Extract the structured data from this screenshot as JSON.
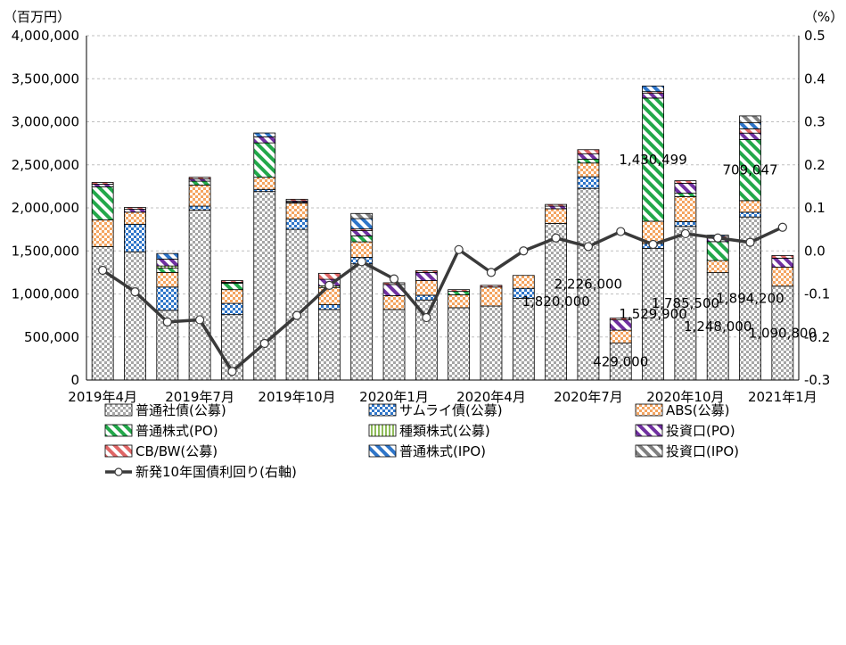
{
  "chart_data": {
    "type": "bar",
    "left_unit": "（百万円）",
    "right_unit": "（%）",
    "categories": [
      "2019年4月",
      "2019年5月",
      "2019年6月",
      "2019年7月",
      "2019年8月",
      "2019年9月",
      "2019年10月",
      "2019年11月",
      "2019年12月",
      "2020年1月",
      "2020年2月",
      "2020年3月",
      "2020年4月",
      "2020年5月",
      "2020年6月",
      "2020年7月",
      "2020年8月",
      "2020年9月",
      "2020年10月",
      "2020年11月",
      "2020年12月",
      "2021年1月"
    ],
    "xtick_labels": [
      "2019年4月",
      "2019年7月",
      "2019年10月",
      "2020年1月",
      "2020年4月",
      "2020年7月",
      "2020年10月",
      "2021年1月"
    ],
    "xtick_indices": [
      0,
      3,
      6,
      9,
      12,
      15,
      18,
      21
    ],
    "ylim": [
      0,
      4000000
    ],
    "yticks": [
      0,
      500000,
      1000000,
      1500000,
      2000000,
      2500000,
      3000000,
      3500000,
      4000000
    ],
    "ytick_labels": [
      "0",
      "500,000",
      "1,000,000",
      "1,500,000",
      "2,000,000",
      "2,500,000",
      "3,000,000",
      "3,500,000",
      "4,000,000"
    ],
    "y2lim": [
      -0.3,
      0.5
    ],
    "y2ticks": [
      -0.3,
      -0.2,
      -0.1,
      0.0,
      0.1,
      0.2,
      0.3,
      0.4,
      0.5
    ],
    "y2tick_labels": [
      "-0.3",
      "-0.2",
      "-0.1",
      "0.0",
      "0.1",
      "0.2",
      "0.3",
      "0.4",
      "0.5"
    ],
    "series": [
      {
        "name": "普通社債(公募)",
        "pattern": "checker",
        "color": "#a6a6a6",
        "values": [
          1550000,
          1490000,
          810000,
          1975000,
          760000,
          2190000,
          1750000,
          820000,
          1350000,
          820000,
          930000,
          840000,
          860000,
          950000,
          1820000,
          2226000,
          429000,
          1529900,
          1785500,
          1248000,
          1894200,
          1090800
        ]
      },
      {
        "name": "サムライ債(公募)",
        "pattern": "checker",
        "color": "#2e75c9",
        "values": [
          0,
          320000,
          270000,
          45000,
          130000,
          25000,
          120000,
          55000,
          75000,
          0,
          55000,
          0,
          0,
          115000,
          0,
          135000,
          0,
          55000,
          55000,
          0,
          55000,
          0
        ]
      },
      {
        "name": "ABS(公募)",
        "pattern": "checker",
        "color": "#f4a460",
        "values": [
          310000,
          140000,
          170000,
          245000,
          160000,
          140000,
          185000,
          200000,
          180000,
          160000,
          170000,
          150000,
          220000,
          150000,
          170000,
          160000,
          150000,
          260000,
          290000,
          140000,
          135000,
          220000
        ]
      },
      {
        "name": "普通株式(PO)",
        "pattern": "diag",
        "color": "#22a84a",
        "values": [
          385000,
          0,
          50000,
          45000,
          75000,
          400000,
          0,
          0,
          70000,
          0,
          0,
          40000,
          0,
          0,
          0,
          45000,
          0,
          1430499,
          40000,
          220000,
          709047,
          0
        ]
      },
      {
        "name": "種類株式(公募)",
        "pattern": "vert",
        "color": "#8fbc5a",
        "values": [
          0,
          0,
          25000,
          0,
          10000,
          0,
          10000,
          20000,
          0,
          0,
          0,
          0,
          0,
          0,
          0,
          0,
          0,
          0,
          0,
          0,
          0,
          0
        ]
      },
      {
        "name": "投資口(PO)",
        "pattern": "diag",
        "color": "#7030a0",
        "values": [
          30000,
          35000,
          80000,
          25000,
          0,
          70000,
          15000,
          75000,
          60000,
          130000,
          95000,
          0,
          0,
          0,
          30000,
          60000,
          120000,
          55000,
          115000,
          40000,
          75000,
          105000
        ]
      },
      {
        "name": "CB/BW(公募)",
        "pattern": "diag",
        "color": "#e06666",
        "values": [
          20000,
          20000,
          0,
          20000,
          20000,
          0,
          20000,
          70000,
          20000,
          20000,
          20000,
          20000,
          20000,
          0,
          20000,
          50000,
          20000,
          20000,
          30000,
          20000,
          50000,
          30000
        ]
      },
      {
        "name": "普通株式(IPO)",
        "pattern": "diag",
        "color": "#2e75c9",
        "values": [
          0,
          0,
          65000,
          0,
          0,
          45000,
          0,
          0,
          120000,
          0,
          0,
          0,
          0,
          0,
          0,
          0,
          0,
          65000,
          0,
          15000,
          70000,
          0
        ]
      },
      {
        "name": "投資口(IPO)",
        "pattern": "diag",
        "color": "#808080",
        "values": [
          0,
          0,
          0,
          0,
          0,
          0,
          0,
          0,
          60000,
          0,
          0,
          0,
          0,
          0,
          0,
          0,
          0,
          0,
          0,
          0,
          80000,
          0
        ]
      }
    ],
    "line": {
      "name": "新発10年国債利回り(右軸)",
      "color": "#3a3a3a",
      "values": [
        -0.045,
        -0.095,
        -0.165,
        -0.16,
        -0.28,
        -0.215,
        -0.15,
        -0.08,
        -0.025,
        -0.065,
        -0.155,
        0.003,
        -0.05,
        0.0,
        0.03,
        0.01,
        0.045,
        0.015,
        0.04,
        0.03,
        0.02,
        0.055
      ]
    },
    "annotations": [
      {
        "index": 14,
        "series": "普通社債(公募)",
        "text": "1,820,000"
      },
      {
        "index": 15,
        "series": "普通社債(公募)",
        "text": "2,226,000"
      },
      {
        "index": 16,
        "series": "普通社債(公募)",
        "text": "429,000"
      },
      {
        "index": 17,
        "series": "普通社債(公募)",
        "text": "1,529,900"
      },
      {
        "index": 17,
        "series": "普通株式(PO)",
        "text": "1,430,499"
      },
      {
        "index": 18,
        "series": "普通社債(公募)",
        "text": "1,785,500"
      },
      {
        "index": 19,
        "series": "普通社債(公募)",
        "text": "1,248,000"
      },
      {
        "index": 20,
        "series": "普通社債(公募)",
        "text": "1,894,200"
      },
      {
        "index": 20,
        "series": "普通株式(PO)",
        "text": "709,047"
      },
      {
        "index": 21,
        "series": "普通社債(公募)",
        "text": "1,090,800"
      }
    ],
    "grid": true,
    "legend_position": "bottom"
  }
}
